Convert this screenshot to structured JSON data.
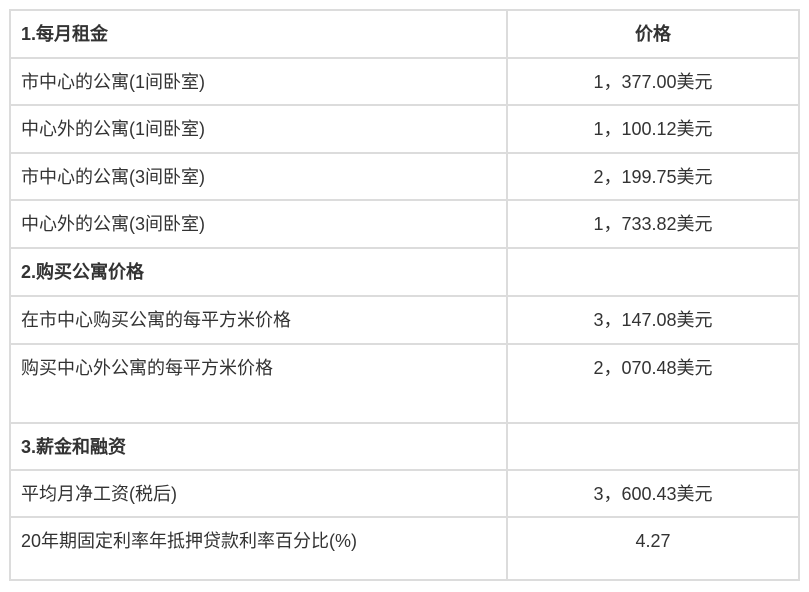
{
  "table": {
    "header": {
      "label": "1.每月租金",
      "price": "价格"
    },
    "rows": [
      {
        "label": "市中心的公寓(1间卧室)",
        "value": "1，377.00美元"
      },
      {
        "label": "中心外的公寓(1间卧室)",
        "value": "1，100.12美元"
      },
      {
        "label": "市中心的公寓(3间卧室)",
        "value": "2，199.75美元"
      },
      {
        "label": "中心外的公寓(3间卧室)",
        "value": "1，733.82美元"
      },
      {
        "label": "2.购买公寓价格",
        "value": ""
      },
      {
        "label": "在市中心购买公寓的每平方米价格",
        "value": "3，147.08美元"
      },
      {
        "label": "购买中心外公寓的每平方米价格",
        "value": "2，070.48美元"
      },
      {
        "label": "3.薪金和融资",
        "value": ""
      },
      {
        "label": "平均月净工资(税后)",
        "value": "3，600.43美元"
      },
      {
        "label": "20年期固定利率年抵押贷款利率百分比(%)",
        "value": "4.27"
      }
    ]
  }
}
